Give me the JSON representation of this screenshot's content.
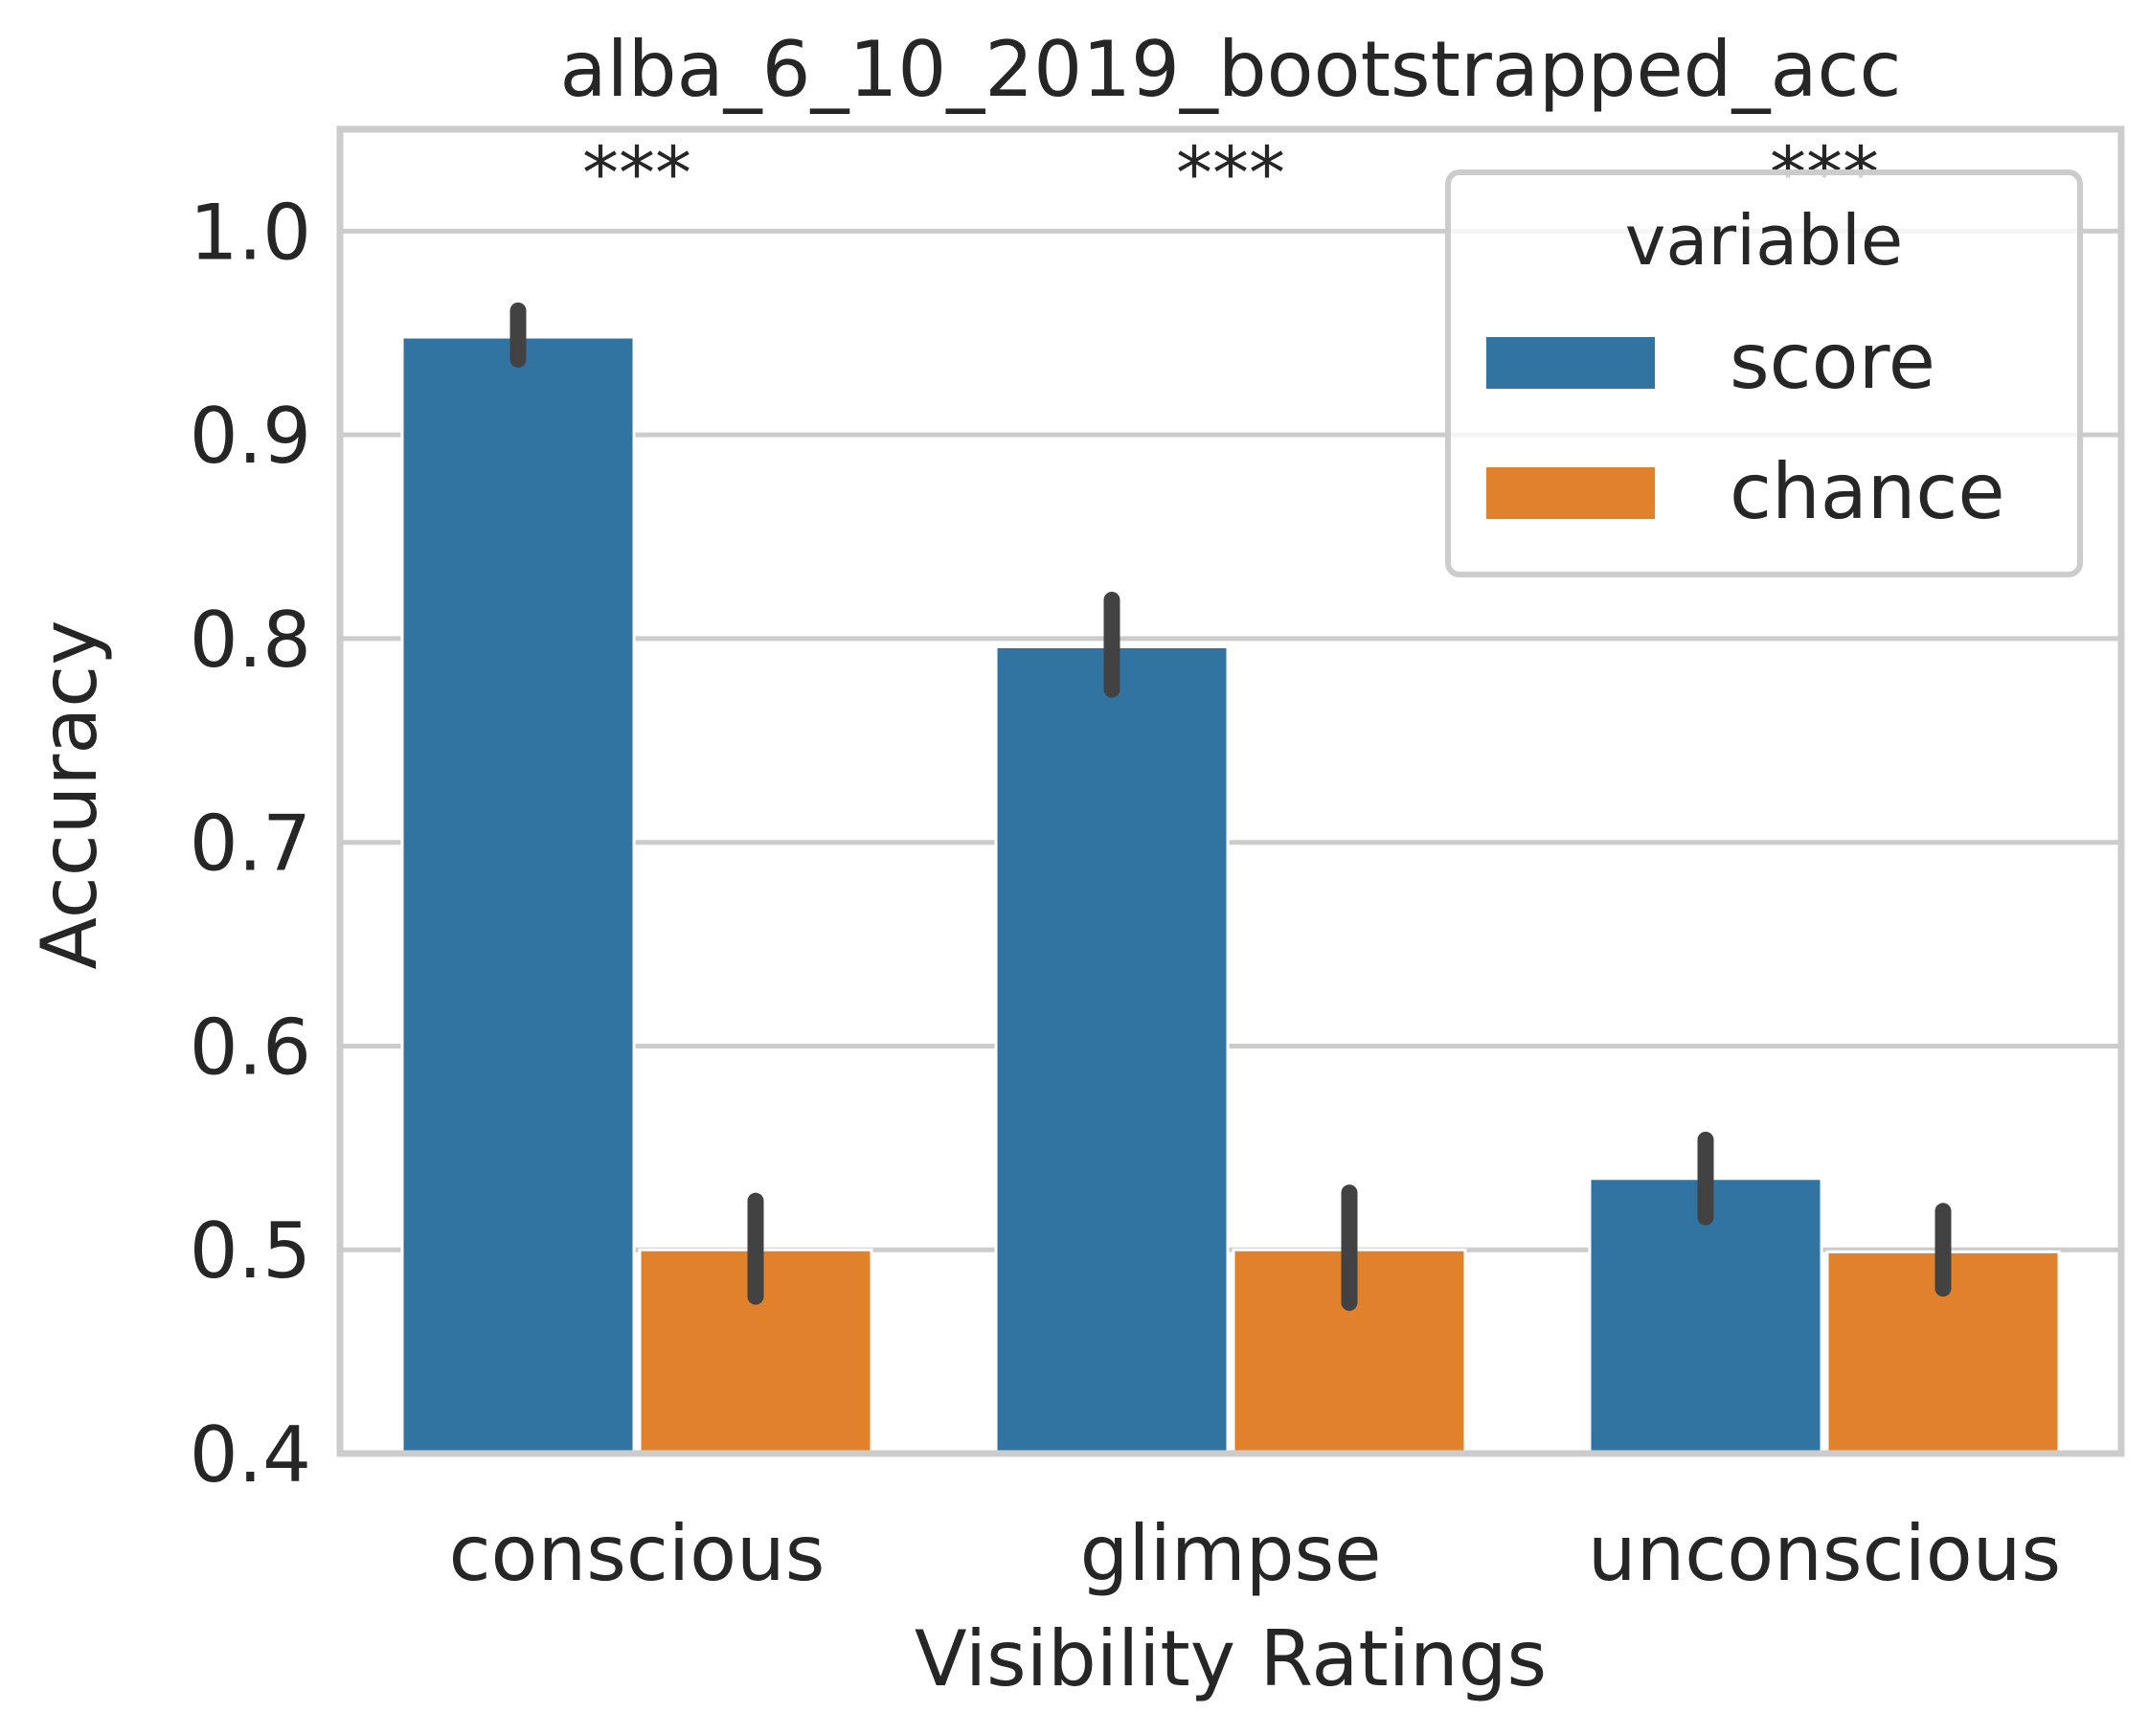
{
  "chart_data": {
    "type": "bar",
    "title": "alba_6_10_2019_bootstrapped_acc",
    "xlabel": "Visibility Ratings",
    "ylabel": "Accuracy",
    "ylim": [
      0.4,
      1.05
    ],
    "yticks": [
      0.4,
      0.5,
      0.6,
      0.7,
      0.8,
      0.9,
      1.0
    ],
    "ytick_labels": [
      "0.4",
      "0.5",
      "0.6",
      "0.7",
      "0.8",
      "0.9",
      "1.0"
    ],
    "categories": [
      "conscious",
      "glimpse",
      "unconscious"
    ],
    "significance": [
      "***",
      "***",
      "***"
    ],
    "grid": true,
    "legend": {
      "title": "variable",
      "position": "top-right"
    },
    "series": [
      {
        "name": "score",
        "color": "#3274a1",
        "values": [
          0.948,
          0.796,
          0.535
        ],
        "ci_low": [
          0.937,
          0.775,
          0.516
        ],
        "ci_high": [
          0.961,
          0.819,
          0.554
        ]
      },
      {
        "name": "chance",
        "color": "#e1812c",
        "values": [
          0.5,
          0.5,
          0.499
        ],
        "ci_low": [
          0.477,
          0.474,
          0.481
        ],
        "ci_high": [
          0.524,
          0.528,
          0.519
        ]
      }
    ]
  }
}
